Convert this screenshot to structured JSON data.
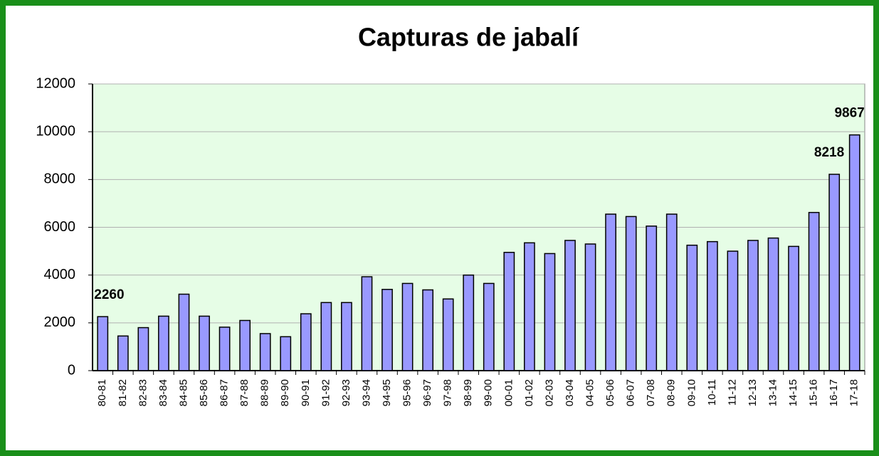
{
  "chart_data": {
    "type": "bar",
    "title": "Capturas de jabalí",
    "categories": [
      "80-81",
      "81-82",
      "82-83",
      "83-84",
      "84-85",
      "85-86",
      "86-87",
      "87-88",
      "88-89",
      "89-90",
      "90-91",
      "91-92",
      "92-93",
      "93-94",
      "94-95",
      "95-96",
      "96-97",
      "97-98",
      "98-99",
      "99-00",
      "00-01",
      "01-02",
      "02-03",
      "03-04",
      "04-05",
      "05-06",
      "06-07",
      "07-08",
      "08-09",
      "09-10",
      "10-11",
      "11-12",
      "12-13",
      "13-14",
      "14-15",
      "15-16",
      "16-17",
      "17-18"
    ],
    "values": [
      2260,
      1450,
      1800,
      2280,
      3200,
      2280,
      1820,
      2100,
      1550,
      1420,
      2380,
      2850,
      2850,
      3930,
      3400,
      3650,
      3380,
      3000,
      4000,
      3650,
      4950,
      5350,
      4900,
      5450,
      5300,
      6550,
      6450,
      6050,
      6550,
      5250,
      5400,
      5000,
      5450,
      5550,
      5200,
      6620,
      8218,
      9867
    ],
    "labeled_bars": [
      0,
      36,
      37
    ],
    "color": "#9999ff",
    "ylim": [
      0,
      12000
    ],
    "yticks": [
      0,
      2000,
      4000,
      6000,
      8000,
      10000,
      12000
    ],
    "grid": true
  }
}
